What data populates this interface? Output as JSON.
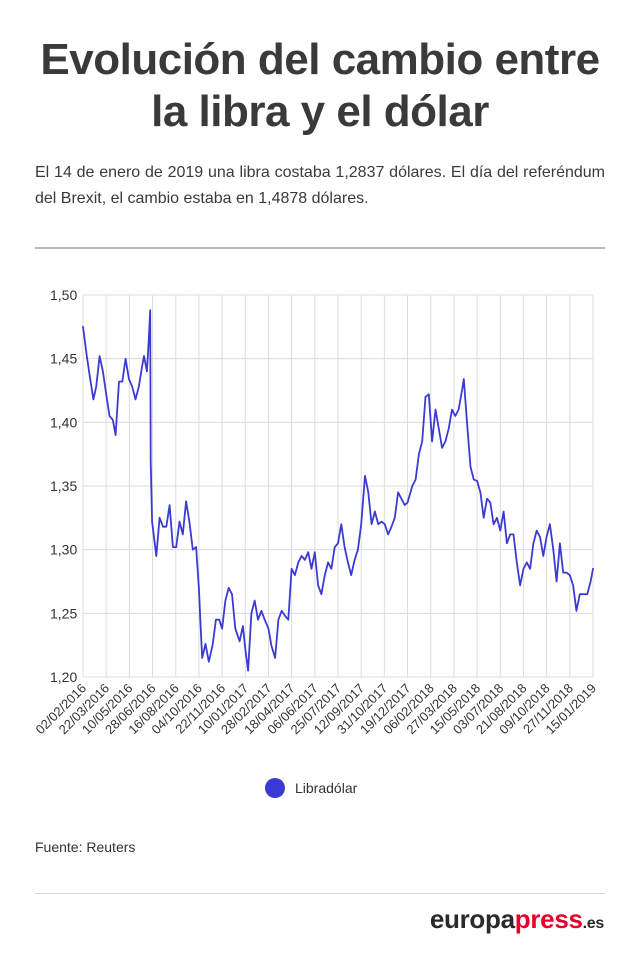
{
  "header": {
    "title_line1": "Evolución del cambio entre",
    "title_line2": "la libra y el dólar",
    "subtitle": "El 14 de enero de 2019 una libra costaba 1,2837 dólares. El día del referéndum del Brexit, el cambio estaba en 1,4878 dólares."
  },
  "legend": {
    "label": "Libradólar",
    "color": "#3b3bd4"
  },
  "source": "Fuente: Reuters",
  "brand": {
    "part1": "europa",
    "part2": "press",
    "part3": ".es"
  },
  "chart_data": {
    "type": "line",
    "title": "",
    "xlabel": "",
    "ylabel": "",
    "ylim": [
      1.2,
      1.5
    ],
    "yticks": [
      1.2,
      1.25,
      1.3,
      1.35,
      1.4,
      1.45,
      1.5
    ],
    "ytick_labels": [
      "1,20",
      "1,25",
      "1,30",
      "1,35",
      "1,40",
      "1,45",
      "1,50"
    ],
    "xlim": [
      "2016-02-02",
      "2019-01-15"
    ],
    "xtick_labels": [
      "02/02/2016",
      "22/03/2016",
      "10/05/2016",
      "28/06/2016",
      "16/08/2016",
      "04/10/2016",
      "22/11/2016",
      "10/01/2017",
      "28/02/2017",
      "18/04/2017",
      "06/06/2017",
      "25/07/2017",
      "12/09/2017",
      "31/10/2017",
      "19/12/2017",
      "06/02/2018",
      "27/03/2018",
      "15/05/2018",
      "03/07/2018",
      "21/08/2018",
      "09/10/2018",
      "27/11/2018",
      "15/01/2019"
    ],
    "grid": true,
    "legend_position": "bottom-center",
    "series": [
      {
        "name": "Libradólar",
        "color": "#3b3bd4",
        "points": [
          [
            "2016-02-02",
            1.475
          ],
          [
            "2016-02-10",
            1.452
          ],
          [
            "2016-02-18",
            1.432
          ],
          [
            "2016-02-24",
            1.418
          ],
          [
            "2016-03-01",
            1.428
          ],
          [
            "2016-03-08",
            1.452
          ],
          [
            "2016-03-15",
            1.44
          ],
          [
            "2016-03-22",
            1.422
          ],
          [
            "2016-03-29",
            1.405
          ],
          [
            "2016-04-05",
            1.402
          ],
          [
            "2016-04-11",
            1.39
          ],
          [
            "2016-04-18",
            1.432
          ],
          [
            "2016-04-25",
            1.432
          ],
          [
            "2016-05-02",
            1.45
          ],
          [
            "2016-05-09",
            1.434
          ],
          [
            "2016-05-16",
            1.428
          ],
          [
            "2016-05-23",
            1.418
          ],
          [
            "2016-05-30",
            1.428
          ],
          [
            "2016-06-06",
            1.444
          ],
          [
            "2016-06-10",
            1.452
          ],
          [
            "2016-06-16",
            1.44
          ],
          [
            "2016-06-20",
            1.465
          ],
          [
            "2016-06-23",
            1.488
          ],
          [
            "2016-06-24",
            1.369
          ],
          [
            "2016-06-27",
            1.322
          ],
          [
            "2016-07-06",
            1.295
          ],
          [
            "2016-07-13",
            1.325
          ],
          [
            "2016-07-20",
            1.318
          ],
          [
            "2016-07-27",
            1.318
          ],
          [
            "2016-08-03",
            1.335
          ],
          [
            "2016-08-10",
            1.302
          ],
          [
            "2016-08-17",
            1.302
          ],
          [
            "2016-08-24",
            1.322
          ],
          [
            "2016-08-31",
            1.312
          ],
          [
            "2016-09-07",
            1.338
          ],
          [
            "2016-09-14",
            1.322
          ],
          [
            "2016-09-21",
            1.3
          ],
          [
            "2016-09-28",
            1.302
          ],
          [
            "2016-10-04",
            1.27
          ],
          [
            "2016-10-07",
            1.245
          ],
          [
            "2016-10-11",
            1.215
          ],
          [
            "2016-10-18",
            1.226
          ],
          [
            "2016-10-25",
            1.212
          ],
          [
            "2016-11-02",
            1.225
          ],
          [
            "2016-11-09",
            1.245
          ],
          [
            "2016-11-16",
            1.245
          ],
          [
            "2016-11-22",
            1.238
          ],
          [
            "2016-11-29",
            1.26
          ],
          [
            "2016-12-06",
            1.27
          ],
          [
            "2016-12-13",
            1.265
          ],
          [
            "2016-12-20",
            1.238
          ],
          [
            "2016-12-29",
            1.228
          ],
          [
            "2017-01-05",
            1.24
          ],
          [
            "2017-01-10",
            1.222
          ],
          [
            "2017-01-16",
            1.205
          ],
          [
            "2017-01-23",
            1.25
          ],
          [
            "2017-01-30",
            1.26
          ],
          [
            "2017-02-06",
            1.245
          ],
          [
            "2017-02-13",
            1.252
          ],
          [
            "2017-02-20",
            1.245
          ],
          [
            "2017-02-28",
            1.238
          ],
          [
            "2017-03-06",
            1.225
          ],
          [
            "2017-03-14",
            1.215
          ],
          [
            "2017-03-21",
            1.245
          ],
          [
            "2017-03-28",
            1.252
          ],
          [
            "2017-04-04",
            1.248
          ],
          [
            "2017-04-11",
            1.245
          ],
          [
            "2017-04-18",
            1.285
          ],
          [
            "2017-04-25",
            1.28
          ],
          [
            "2017-05-02",
            1.29
          ],
          [
            "2017-05-09",
            1.295
          ],
          [
            "2017-05-16",
            1.292
          ],
          [
            "2017-05-23",
            1.298
          ],
          [
            "2017-05-30",
            1.285
          ],
          [
            "2017-06-06",
            1.298
          ],
          [
            "2017-06-13",
            1.272
          ],
          [
            "2017-06-20",
            1.265
          ],
          [
            "2017-06-27",
            1.28
          ],
          [
            "2017-07-04",
            1.29
          ],
          [
            "2017-07-11",
            1.285
          ],
          [
            "2017-07-18",
            1.302
          ],
          [
            "2017-07-25",
            1.305
          ],
          [
            "2017-08-01",
            1.32
          ],
          [
            "2017-08-08",
            1.302
          ],
          [
            "2017-08-15",
            1.29
          ],
          [
            "2017-08-22",
            1.28
          ],
          [
            "2017-08-29",
            1.292
          ],
          [
            "2017-09-05",
            1.3
          ],
          [
            "2017-09-12",
            1.32
          ],
          [
            "2017-09-20",
            1.358
          ],
          [
            "2017-09-27",
            1.345
          ],
          [
            "2017-10-04",
            1.32
          ],
          [
            "2017-10-11",
            1.33
          ],
          [
            "2017-10-18",
            1.32
          ],
          [
            "2017-10-25",
            1.322
          ],
          [
            "2017-11-01",
            1.32
          ],
          [
            "2017-11-08",
            1.312
          ],
          [
            "2017-11-15",
            1.318
          ],
          [
            "2017-11-22",
            1.325
          ],
          [
            "2017-11-29",
            1.345
          ],
          [
            "2017-12-06",
            1.34
          ],
          [
            "2017-12-13",
            1.335
          ],
          [
            "2017-12-19",
            1.337
          ],
          [
            "2017-12-29",
            1.35
          ],
          [
            "2018-01-05",
            1.355
          ],
          [
            "2018-01-12",
            1.375
          ],
          [
            "2018-01-19",
            1.385
          ],
          [
            "2018-01-26",
            1.42
          ],
          [
            "2018-02-02",
            1.422
          ],
          [
            "2018-02-09",
            1.385
          ],
          [
            "2018-02-16",
            1.41
          ],
          [
            "2018-02-23",
            1.395
          ],
          [
            "2018-03-02",
            1.38
          ],
          [
            "2018-03-09",
            1.385
          ],
          [
            "2018-03-16",
            1.395
          ],
          [
            "2018-03-23",
            1.41
          ],
          [
            "2018-03-30",
            1.405
          ],
          [
            "2018-04-06",
            1.41
          ],
          [
            "2018-04-13",
            1.425
          ],
          [
            "2018-04-17",
            1.434
          ],
          [
            "2018-04-24",
            1.398
          ],
          [
            "2018-05-01",
            1.365
          ],
          [
            "2018-05-08",
            1.355
          ],
          [
            "2018-05-15",
            1.354
          ],
          [
            "2018-05-22",
            1.345
          ],
          [
            "2018-05-29",
            1.325
          ],
          [
            "2018-06-05",
            1.34
          ],
          [
            "2018-06-12",
            1.337
          ],
          [
            "2018-06-19",
            1.32
          ],
          [
            "2018-06-26",
            1.325
          ],
          [
            "2018-07-03",
            1.315
          ],
          [
            "2018-07-10",
            1.33
          ],
          [
            "2018-07-17",
            1.305
          ],
          [
            "2018-07-24",
            1.312
          ],
          [
            "2018-07-31",
            1.312
          ],
          [
            "2018-08-07",
            1.29
          ],
          [
            "2018-08-14",
            1.272
          ],
          [
            "2018-08-21",
            1.285
          ],
          [
            "2018-08-28",
            1.29
          ],
          [
            "2018-09-04",
            1.285
          ],
          [
            "2018-09-11",
            1.305
          ],
          [
            "2018-09-18",
            1.315
          ],
          [
            "2018-09-25",
            1.31
          ],
          [
            "2018-10-02",
            1.295
          ],
          [
            "2018-10-09",
            1.31
          ],
          [
            "2018-10-16",
            1.32
          ],
          [
            "2018-10-23",
            1.3
          ],
          [
            "2018-10-30",
            1.275
          ],
          [
            "2018-11-06",
            1.305
          ],
          [
            "2018-11-13",
            1.282
          ],
          [
            "2018-11-20",
            1.282
          ],
          [
            "2018-11-27",
            1.28
          ],
          [
            "2018-12-04",
            1.272
          ],
          [
            "2018-12-11",
            1.252
          ],
          [
            "2018-12-18",
            1.265
          ],
          [
            "2018-12-27",
            1.265
          ],
          [
            "2019-01-03",
            1.265
          ],
          [
            "2019-01-10",
            1.275
          ],
          [
            "2019-01-15",
            1.285
          ]
        ]
      }
    ]
  }
}
